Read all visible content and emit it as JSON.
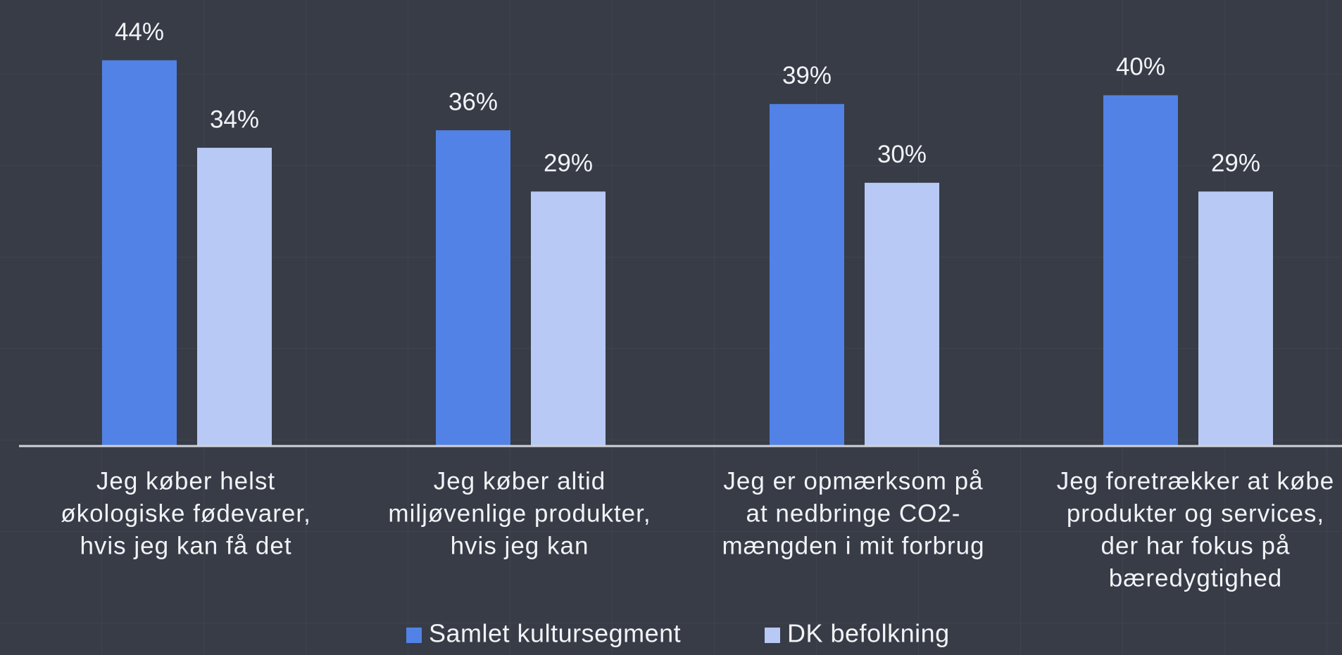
{
  "chart_data": {
    "type": "bar",
    "categories": [
      [
        "Jeg køber helst",
        "økologiske fødevarer,",
        "hvis jeg kan få det"
      ],
      [
        "Jeg køber altid",
        "miljøvenlige produkter,",
        "hvis jeg kan"
      ],
      [
        "Jeg er opmærksom på",
        "at nedbringe CO2-",
        "mængden i mit forbrug"
      ],
      [
        "Jeg foretrækker at købe",
        "produkter og services,",
        "der har fokus på",
        "bæredygtighed"
      ]
    ],
    "series": [
      {
        "name": "Samlet kultursegment",
        "color": "#5282e6",
        "values": [
          44,
          36,
          39,
          40
        ],
        "value_labels": [
          "44%",
          "36%",
          "39%",
          "40%"
        ]
      },
      {
        "name": "DK befolkning",
        "color": "#b8c9f5",
        "values": [
          34,
          29,
          30,
          29
        ],
        "value_labels": [
          "34%",
          "29%",
          "30%",
          "29%"
        ]
      }
    ],
    "ylim": [
      0,
      50
    ]
  }
}
